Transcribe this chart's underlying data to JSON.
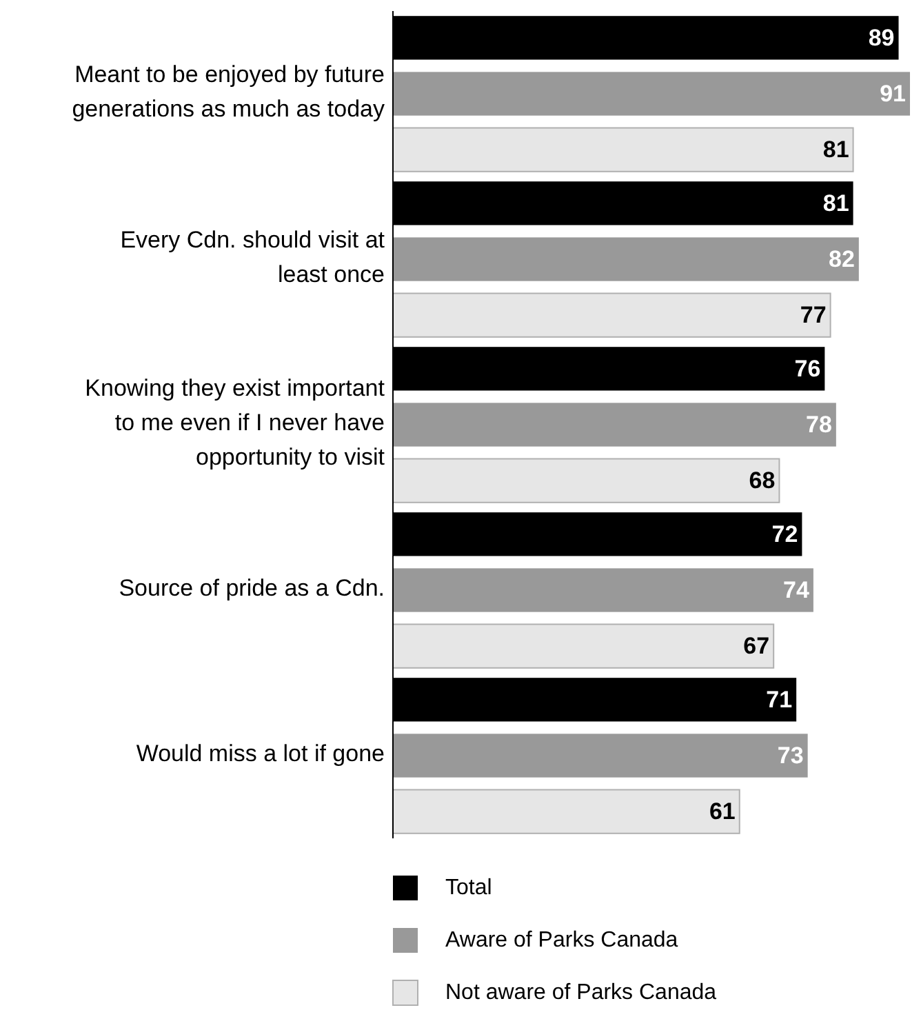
{
  "chart_data": {
    "type": "bar",
    "orientation": "horizontal",
    "categories": [
      "Meant to be enjoyed by future generations as much as today",
      "Every Cdn. should visit at least once",
      "Knowing they exist important to me even if I never have opportunity to visit",
      "Source of pride as a Cdn.",
      "Would miss a lot if gone"
    ],
    "series": [
      {
        "name": "Total",
        "color": "#000000",
        "values": [
          89,
          81,
          76,
          72,
          71
        ]
      },
      {
        "name": "Aware of Parks Canada",
        "color": "#999999",
        "values": [
          91,
          82,
          78,
          74,
          73
        ]
      },
      {
        "name": "Not aware of Parks Canada",
        "color": "#e6e6e6",
        "values": [
          81,
          77,
          68,
          67,
          61
        ]
      }
    ],
    "data_labels": true,
    "legend": "bottom"
  }
}
